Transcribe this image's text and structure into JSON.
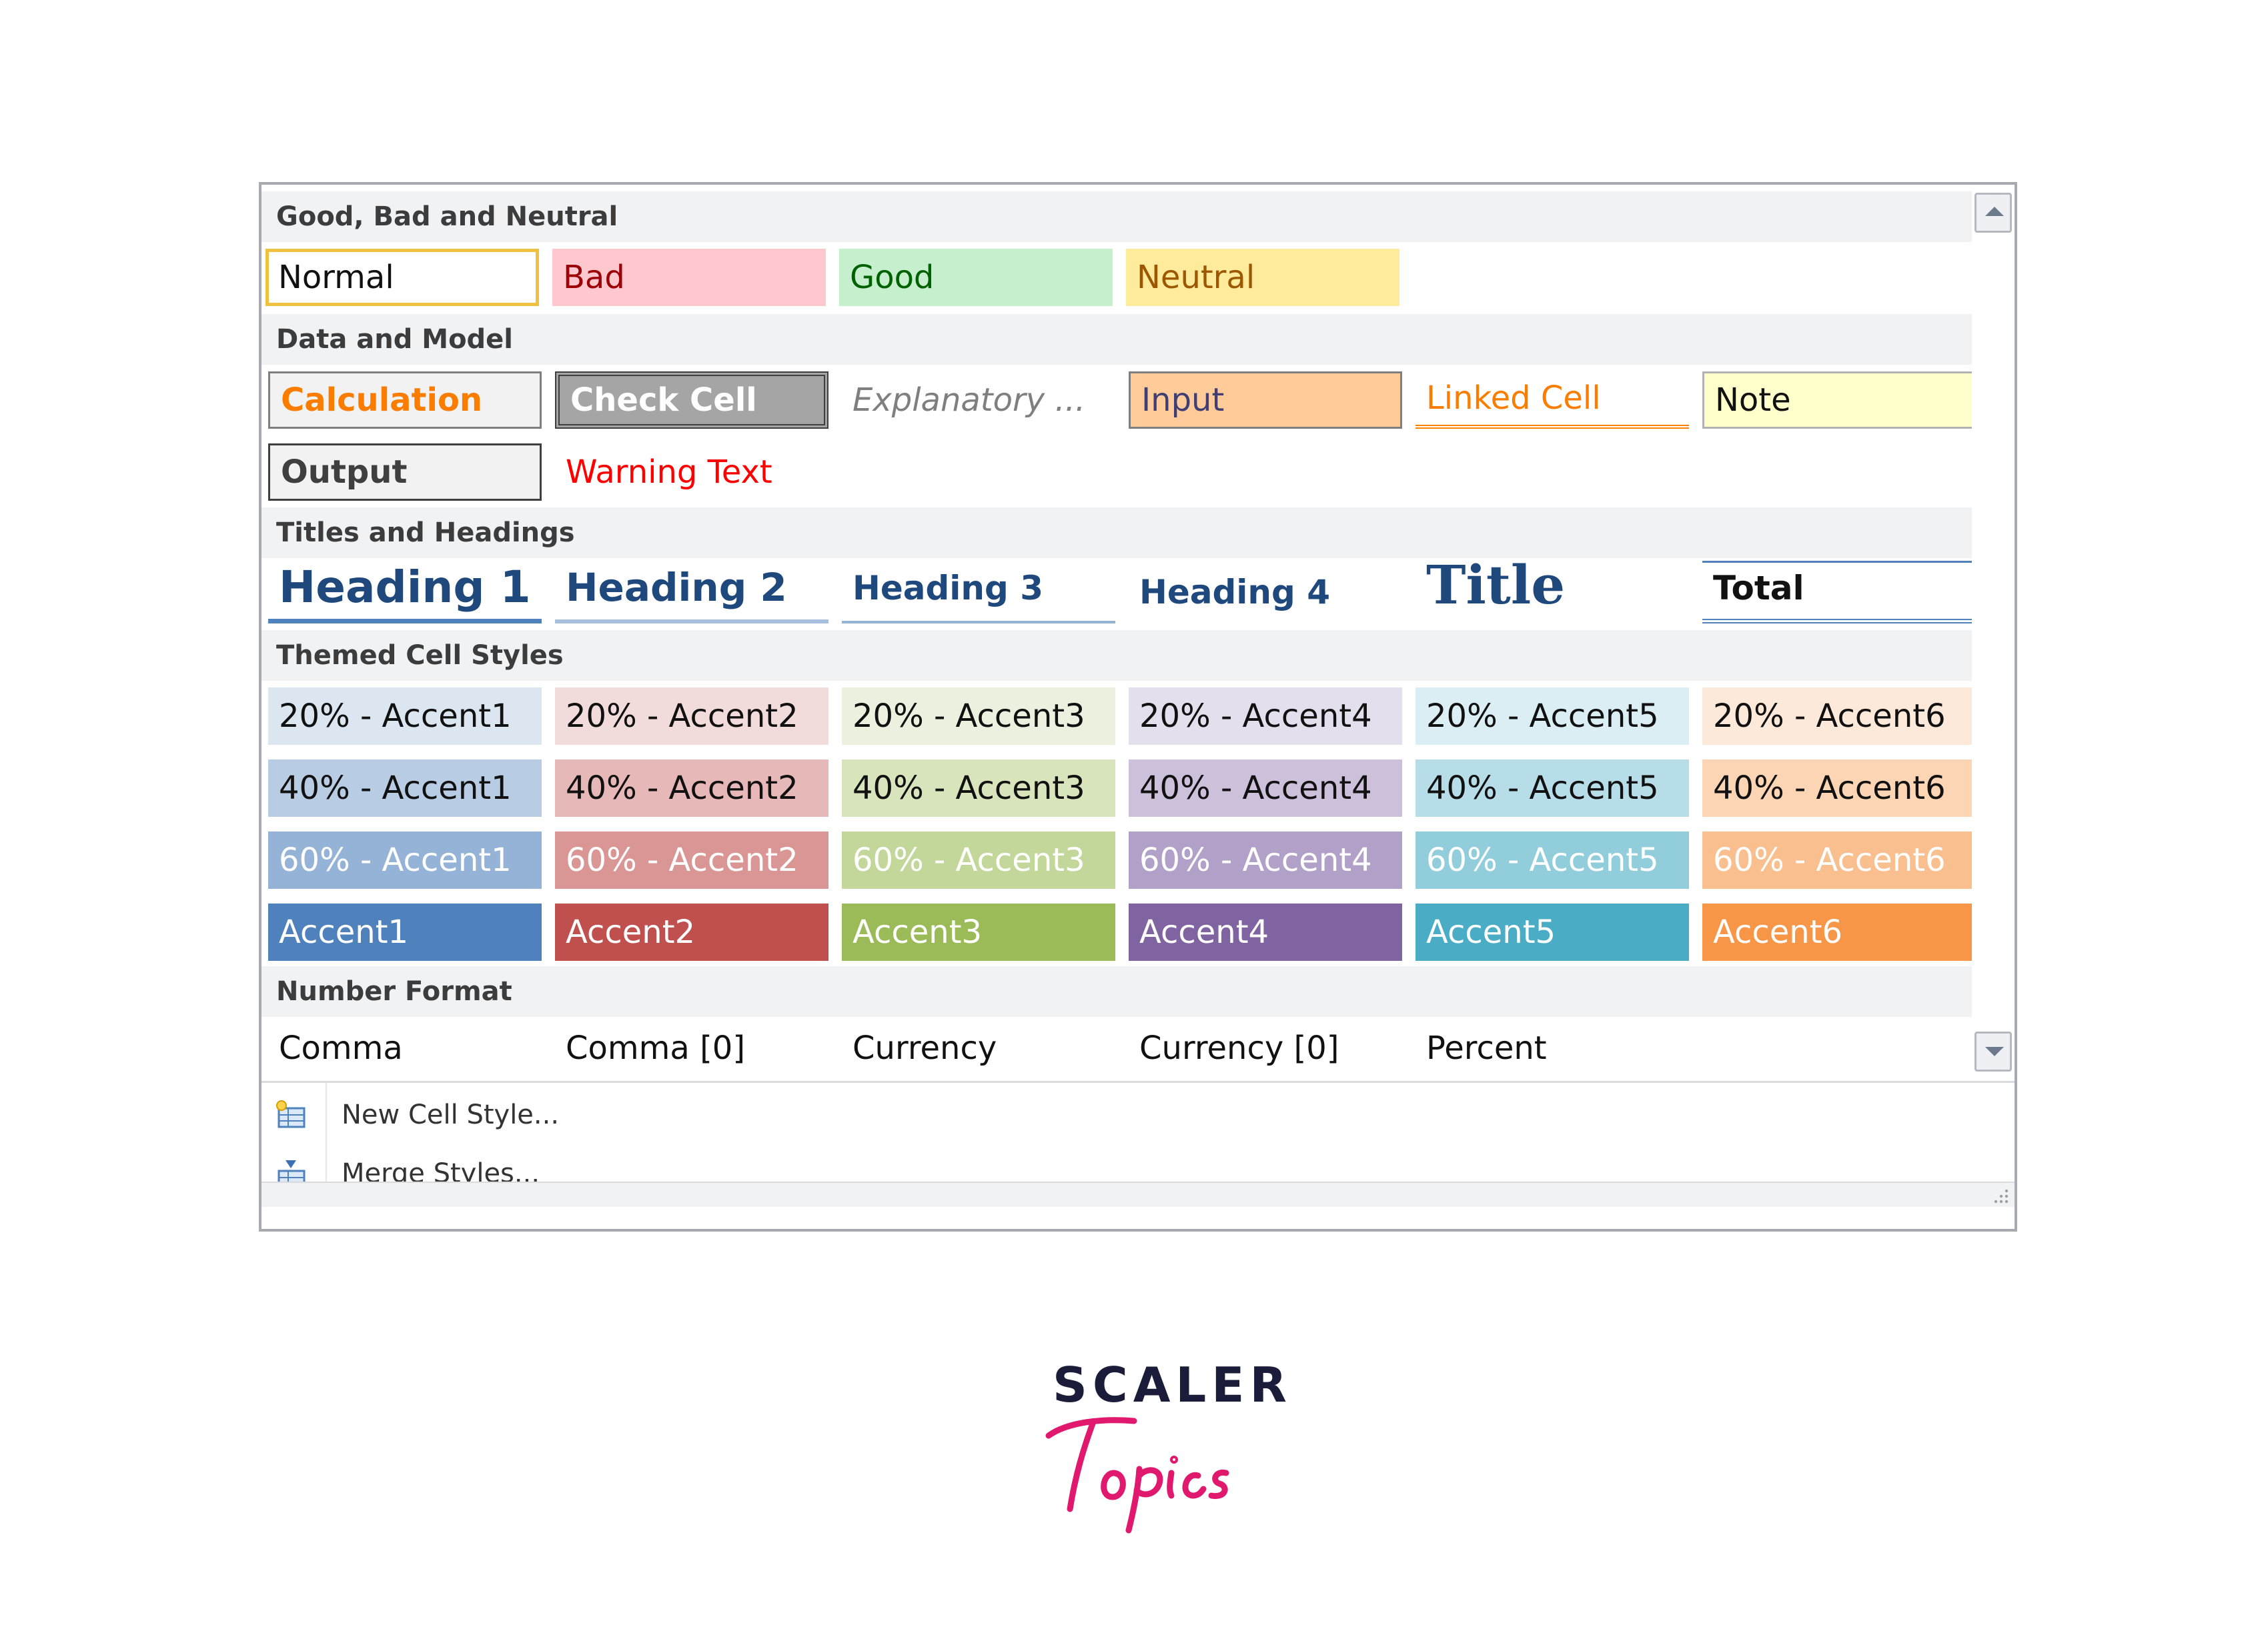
{
  "gallery": {
    "sections": {
      "good_bad_neutral": "Good, Bad and Neutral",
      "data_model": "Data and Model",
      "titles_headings": "Titles and Headings",
      "themed": "Themed Cell Styles",
      "number_format": "Number Format"
    },
    "good_bad_neutral": {
      "normal": "Normal",
      "bad": "Bad",
      "good": "Good",
      "neutral": "Neutral"
    },
    "data_model": {
      "calculation": "Calculation",
      "check_cell": "Check Cell",
      "explanatory": "Explanatory ...",
      "input": "Input",
      "linked_cell": "Linked Cell",
      "note": "Note",
      "output": "Output",
      "warning_text": "Warning Text"
    },
    "titles_headings": {
      "heading1": "Heading 1",
      "heading2": "Heading 2",
      "heading3": "Heading 3",
      "heading4": "Heading 4",
      "title": "Title",
      "total": "Total"
    },
    "themed": {
      "row20": [
        "20% - Accent1",
        "20% - Accent2",
        "20% - Accent3",
        "20% - Accent4",
        "20% - Accent5",
        "20% - Accent6"
      ],
      "row40": [
        "40% - Accent1",
        "40% - Accent2",
        "40% - Accent3",
        "40% - Accent4",
        "40% - Accent5",
        "40% - Accent6"
      ],
      "row60": [
        "60% - Accent1",
        "60% - Accent2",
        "60% - Accent3",
        "60% - Accent4",
        "60% - Accent5",
        "60% - Accent6"
      ],
      "row100": [
        "Accent1",
        "Accent2",
        "Accent3",
        "Accent4",
        "Accent5",
        "Accent6"
      ],
      "colors20": [
        "#dce6f1",
        "#f2dcdb",
        "#ebf1de",
        "#e4dfec",
        "#daeef3",
        "#fde9d9"
      ],
      "colors40": [
        "#b8cce4",
        "#e6b8b7",
        "#d8e4bc",
        "#ccc0da",
        "#b7dee8",
        "#fcd5b4"
      ],
      "colors60": [
        "#95b3d7",
        "#da9694",
        "#c4d79b",
        "#b1a0c7",
        "#92cddc",
        "#fabf8f"
      ],
      "colors100": [
        "#4f81bd",
        "#c0504d",
        "#9bbb59",
        "#8064a2",
        "#4bacc6",
        "#f79646"
      ]
    },
    "number_format": [
      "Comma",
      "Comma [0]",
      "Currency",
      "Currency [0]",
      "Percent"
    ]
  },
  "menu": {
    "new_cell_style": "New Cell Style...",
    "merge_styles": "Merge Styles..."
  },
  "icons": {
    "scroll_up": "chevron-up-icon",
    "scroll_down": "chevron-down-icon",
    "new_style": "new-cell-style-icon",
    "merge": "merge-styles-icon"
  },
  "logo": {
    "word": "SCALER",
    "script": "Topics"
  }
}
